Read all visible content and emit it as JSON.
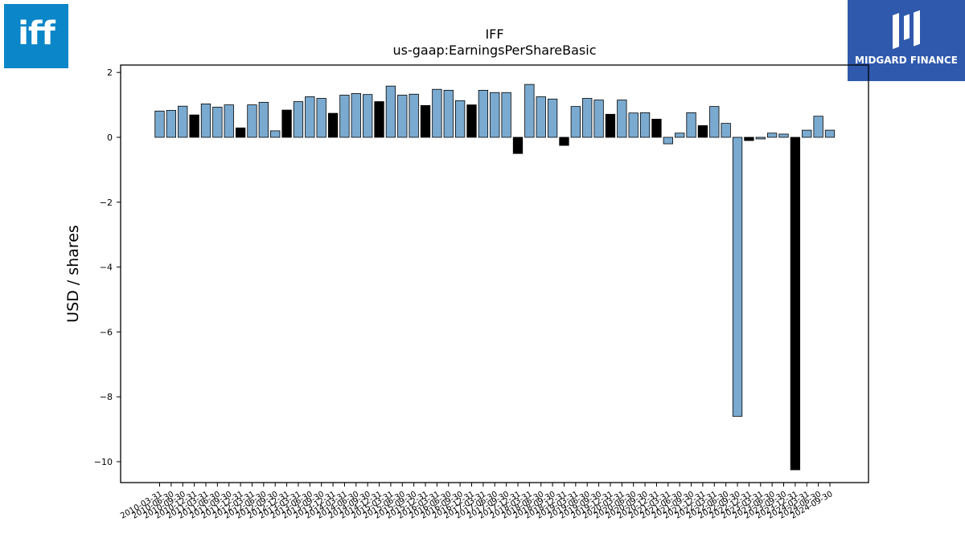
{
  "logos": {
    "left_text": "iff",
    "right_text": "MIDGARD FINANCE",
    "left_color": "#0a86c9",
    "right_color": "#2f59ad"
  },
  "chart_data": {
    "type": "bar",
    "title": "IFF",
    "subtitle": "us-gaap:EarningsPerShareBasic",
    "xlabel": "",
    "ylabel": "USD / shares",
    "ylim": [
      -10.6,
      2.25
    ],
    "yticks": [
      2,
      0,
      -2,
      -4,
      -6,
      -8,
      -10
    ],
    "ytick_labels": [
      "2",
      "0",
      "−2",
      "−4",
      "−6",
      "−8",
      "−10"
    ],
    "colors": {
      "quarterly": "#7aaad0",
      "annual": "#000000",
      "edge": "#000000"
    },
    "grid": false,
    "legend": "none",
    "categories": [
      "2010-03-31",
      "2010-06-30",
      "2010-09-30",
      "2010-12-31",
      "2011-03-31",
      "2011-06-30",
      "2011-09-30",
      "2011-12-31",
      "2012-03-31",
      "2012-06-30",
      "2012-09-30",
      "2012-12-31",
      "2013-03-31",
      "2013-06-30",
      "2013-09-30",
      "2013-12-31",
      "2014-03-31",
      "2014-06-30",
      "2014-09-30",
      "2014-12-31",
      "2015-03-31",
      "2015-06-30",
      "2015-09-30",
      "2015-12-31",
      "2016-03-31",
      "2016-06-30",
      "2016-09-30",
      "2016-12-31",
      "2017-03-31",
      "2017-06-30",
      "2017-09-30",
      "2017-12-31",
      "2018-03-31",
      "2018-06-30",
      "2018-09-30",
      "2018-12-31",
      "2019-03-31",
      "2019-06-30",
      "2019-09-30",
      "2019-12-31",
      "2020-03-31",
      "2020-06-30",
      "2020-09-30",
      "2020-12-31",
      "2021-03-31",
      "2021-06-30",
      "2021-09-30",
      "2021-12-31",
      "2022-03-31",
      "2022-06-30",
      "2022-09-30",
      "2022-12-31",
      "2023-03-31",
      "2023-06-30",
      "2023-09-30",
      "2023-12-31",
      "2024-03-31",
      "2024-06-30",
      "2024-09-30"
    ],
    "values": [
      0.81,
      0.83,
      0.96,
      0.69,
      1.03,
      0.93,
      1.0,
      0.29,
      1.0,
      1.08,
      0.2,
      0.84,
      1.1,
      1.25,
      1.2,
      0.74,
      1.3,
      1.35,
      1.32,
      1.1,
      1.58,
      1.3,
      1.33,
      0.98,
      1.48,
      1.45,
      1.13,
      1.0,
      1.45,
      1.38,
      1.38,
      -0.5,
      1.63,
      1.25,
      1.18,
      -0.25,
      0.95,
      1.2,
      1.15,
      0.71,
      1.15,
      0.75,
      0.76,
      0.56,
      -0.2,
      0.13,
      0.76,
      0.36,
      0.95,
      0.43,
      -8.6,
      -0.1,
      -0.05,
      0.13,
      0.1,
      -10.25,
      0.22,
      0.65,
      0.22
    ],
    "annual_flags": [
      0,
      0,
      0,
      1,
      0,
      0,
      0,
      1,
      0,
      0,
      0,
      1,
      0,
      0,
      0,
      1,
      0,
      0,
      0,
      1,
      0,
      0,
      0,
      1,
      0,
      0,
      0,
      1,
      0,
      0,
      0,
      1,
      0,
      0,
      0,
      1,
      0,
      0,
      0,
      1,
      0,
      0,
      0,
      1,
      0,
      0,
      0,
      1,
      0,
      0,
      0,
      1,
      0,
      0,
      0,
      1,
      0,
      0,
      0
    ]
  }
}
